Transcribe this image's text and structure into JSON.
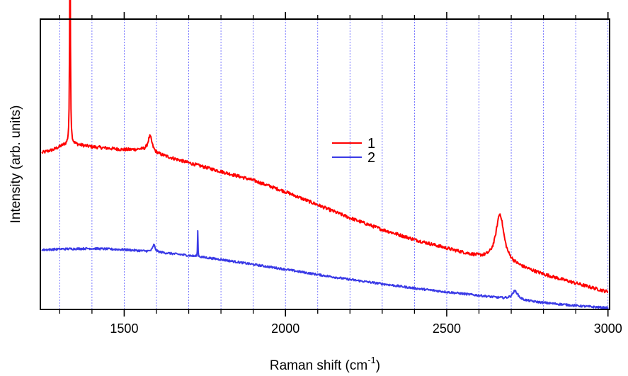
{
  "chart_data": {
    "type": "line",
    "xlabel": "Raman shift (cm",
    "xlabel_sup": "-1",
    "xlabel_close": ")",
    "ylabel": "Intensity (arb. units)",
    "xlim": [
      1240,
      3005
    ],
    "ylim": [
      0,
      100
    ],
    "x_ticks_major": [
      1500,
      2000,
      2500,
      3000
    ],
    "x_tick_labels": [
      "1500",
      "2000",
      "2500",
      "3000"
    ],
    "x_ticks_minor": [
      1300,
      1400,
      1600,
      1700,
      1800,
      1900,
      2100,
      2200,
      2300,
      2400,
      2600,
      2700,
      2800,
      2900
    ],
    "grid": true,
    "y_tick_labels_shown": false,
    "legend_position": "center",
    "series": [
      {
        "name": "1",
        "color": "#ff0000",
        "noise": 0.55,
        "anchors": [
          [
            1245,
            54.0
          ],
          [
            1280,
            55.0
          ],
          [
            1310,
            56.5
          ],
          [
            1340,
            57.0
          ],
          [
            1400,
            56.0
          ],
          [
            1450,
            55.5
          ],
          [
            1500,
            55.0
          ],
          [
            1550,
            55.0
          ],
          [
            1620,
            53.0
          ],
          [
            1700,
            50.5
          ],
          [
            1800,
            47.5
          ],
          [
            1900,
            44.5
          ],
          [
            2000,
            40.5
          ],
          [
            2100,
            36.0
          ],
          [
            2200,
            31.5
          ],
          [
            2300,
            27.5
          ],
          [
            2400,
            24.0
          ],
          [
            2500,
            21.0
          ],
          [
            2600,
            18.0
          ],
          [
            2700,
            15.5
          ],
          [
            2800,
            12.0
          ],
          [
            2900,
            9.0
          ],
          [
            3000,
            6.0
          ]
        ],
        "peaks": [
          [
            1332,
            84.0,
            2.5
          ],
          [
            1580,
            5.5,
            16
          ],
          [
            2665,
            16.5,
            30
          ]
        ]
      },
      {
        "name": "2",
        "color": "#3a3ae6",
        "noise": 0.35,
        "anchors": [
          [
            1245,
            20.5
          ],
          [
            1300,
            20.8
          ],
          [
            1400,
            21.0
          ],
          [
            1500,
            20.6
          ],
          [
            1600,
            19.8
          ],
          [
            1700,
            18.6
          ],
          [
            1800,
            17.2
          ],
          [
            1900,
            15.5
          ],
          [
            2000,
            13.8
          ],
          [
            2100,
            12.0
          ],
          [
            2200,
            10.3
          ],
          [
            2300,
            8.8
          ],
          [
            2400,
            7.3
          ],
          [
            2500,
            6.0
          ],
          [
            2600,
            4.8
          ],
          [
            2700,
            3.5
          ],
          [
            2800,
            2.3
          ],
          [
            2900,
            1.3
          ],
          [
            3000,
            0.5
          ]
        ],
        "peaks": [
          [
            1592,
            2.4,
            9
          ],
          [
            1728,
            9.0,
            1.4
          ],
          [
            2712,
            3.0,
            22
          ]
        ]
      }
    ]
  }
}
